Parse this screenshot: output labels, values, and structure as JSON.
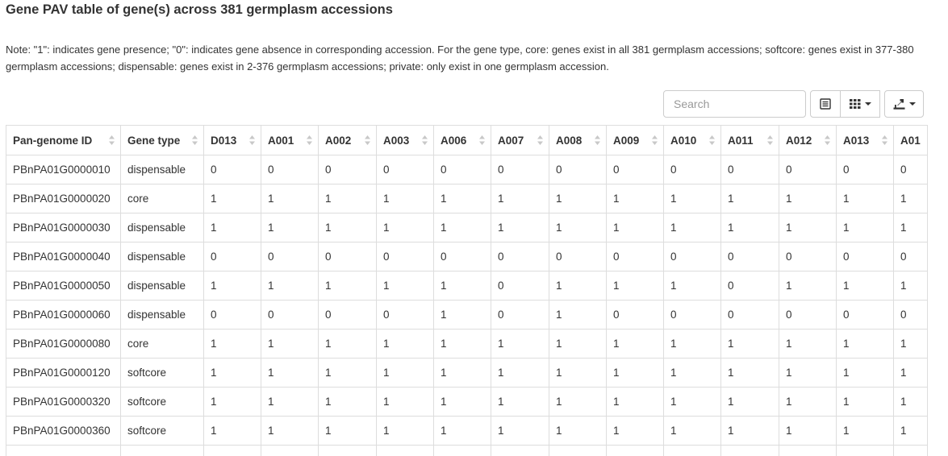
{
  "page": {
    "title": "Gene PAV table of gene(s) across 381 germplasm accessions",
    "note": "Note: \"1\": indicates gene presence; \"0\": indicates gene absence in corresponding accession. For the gene type, core: genes exist in all 381 germplasm accessions; softcore: genes exist in 377-380 germplasm accessions; dispensable: genes exist in 2-376 germplasm accessions; private: only exist in one germplasm accession."
  },
  "toolbar": {
    "search_placeholder": "Search",
    "toggle_view_icon": "list-view-icon",
    "columns_icon": "columns-grid-icon",
    "export_icon": "export-download-icon"
  },
  "table": {
    "columns": [
      "Pan-genome ID",
      "Gene type",
      "D013",
      "A001",
      "A002",
      "A003",
      "A006",
      "A007",
      "A008",
      "A009",
      "A010",
      "A011",
      "A012",
      "A013",
      "A01"
    ],
    "rows": [
      [
        "PBnPA01G0000010",
        "dispensable",
        "0",
        "0",
        "0",
        "0",
        "0",
        "0",
        "0",
        "0",
        "0",
        "0",
        "0",
        "0",
        "0"
      ],
      [
        "PBnPA01G0000020",
        "core",
        "1",
        "1",
        "1",
        "1",
        "1",
        "1",
        "1",
        "1",
        "1",
        "1",
        "1",
        "1",
        "1"
      ],
      [
        "PBnPA01G0000030",
        "dispensable",
        "1",
        "1",
        "1",
        "1",
        "1",
        "1",
        "1",
        "1",
        "1",
        "1",
        "1",
        "1",
        "1"
      ],
      [
        "PBnPA01G0000040",
        "dispensable",
        "0",
        "0",
        "0",
        "0",
        "0",
        "0",
        "0",
        "0",
        "0",
        "0",
        "0",
        "0",
        "0"
      ],
      [
        "PBnPA01G0000050",
        "dispensable",
        "1",
        "1",
        "1",
        "1",
        "1",
        "0",
        "1",
        "1",
        "1",
        "0",
        "1",
        "1",
        "1"
      ],
      [
        "PBnPA01G0000060",
        "dispensable",
        "0",
        "0",
        "0",
        "0",
        "1",
        "0",
        "1",
        "0",
        "0",
        "0",
        "0",
        "0",
        "0"
      ],
      [
        "PBnPA01G0000080",
        "core",
        "1",
        "1",
        "1",
        "1",
        "1",
        "1",
        "1",
        "1",
        "1",
        "1",
        "1",
        "1",
        "1"
      ],
      [
        "PBnPA01G0000120",
        "softcore",
        "1",
        "1",
        "1",
        "1",
        "1",
        "1",
        "1",
        "1",
        "1",
        "1",
        "1",
        "1",
        "1"
      ],
      [
        "PBnPA01G0000320",
        "softcore",
        "1",
        "1",
        "1",
        "1",
        "1",
        "1",
        "1",
        "1",
        "1",
        "1",
        "1",
        "1",
        "1"
      ],
      [
        "PBnPA01G0000360",
        "softcore",
        "1",
        "1",
        "1",
        "1",
        "1",
        "1",
        "1",
        "1",
        "1",
        "1",
        "1",
        "1",
        "1"
      ],
      [
        "",
        "",
        "",
        "",
        "",
        "",
        "",
        "",
        "",
        "",
        "",
        "",
        "",
        "",
        ""
      ]
    ]
  },
  "colors": {
    "border": "#dddddd",
    "text": "#333333",
    "sort_icon": "#c8c8c8"
  }
}
